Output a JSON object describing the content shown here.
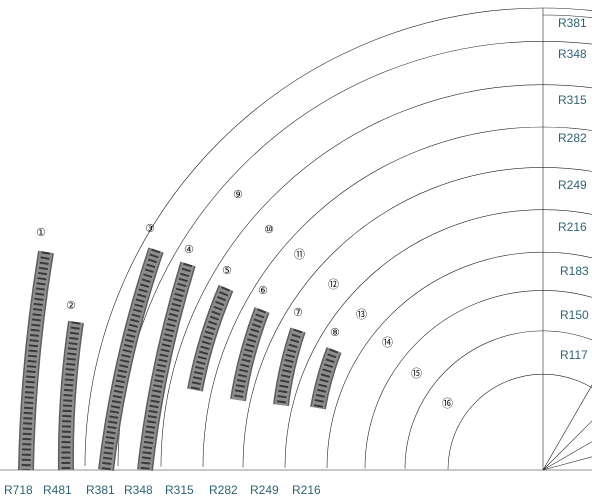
{
  "right_labels": [
    "R381",
    "R348",
    "R315",
    "R282",
    "R249",
    "R216",
    "R183",
    "R150",
    "R117"
  ],
  "bottom_labels": [
    "R718",
    "R481",
    "R381",
    "R348",
    "R315",
    "R282",
    "R249",
    "R216"
  ],
  "item_numbers": [
    "①",
    "②",
    "③",
    "④",
    "⑤",
    "⑥",
    "⑦",
    "⑧",
    "⑨",
    "⑩",
    "⑪",
    "⑫",
    "⑬",
    "⑭",
    "⑮",
    "⑯"
  ],
  "colors": {
    "highlight": "#f4a641",
    "ballast": "#8e8e8e",
    "ballast_edge": "#5e5e5e",
    "sleeper": "#3a3a3a",
    "rail": "#e4e4e4",
    "label": "#2a6478"
  }
}
